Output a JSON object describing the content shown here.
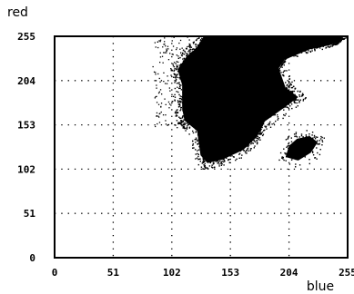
{
  "chart_data": {
    "type": "scatter",
    "title": "",
    "xlabel": "blue",
    "ylabel": "red",
    "xlim": [
      0,
      255
    ],
    "ylim": [
      0,
      255
    ],
    "x_ticks": [
      "0",
      "51",
      "102",
      "153",
      "204",
      "255"
    ],
    "y_ticks": [
      "0",
      "51",
      "102",
      "153",
      "204",
      "255"
    ],
    "grid": true,
    "grid_style": "dotted",
    "point_color": "#000000",
    "series": [
      {
        "clusters": [
          {
            "shape": "main-dense-region",
            "outline": [
              [
                130,
                255
              ],
              [
                250,
                255
              ],
              [
                248,
                249
              ],
              [
                240,
                245
              ],
              [
                222,
                240
              ],
              [
                200,
                228
              ],
              [
                195,
                218
              ],
              [
                201,
                196
              ],
              [
                212,
                185
              ],
              [
                200,
                173
              ],
              [
                183,
                157
              ],
              [
                176,
                139
              ],
              [
                164,
                124
              ],
              [
                146,
                113
              ],
              [
                133,
                109
              ],
              [
                127,
                118
              ],
              [
                124,
                146
              ],
              [
                113,
                158
              ],
              [
                111,
                172
              ],
              [
                111,
                199
              ],
              [
                107,
                217
              ],
              [
                115,
                232
              ],
              [
                123,
                241
              ]
            ]
          },
          {
            "shape": "secondary-small-blob",
            "outline": [
              [
                201,
                116
              ],
              [
                212,
                112
              ],
              [
                223,
                121
              ],
              [
                229,
                133
              ],
              [
                222,
                140
              ],
              [
                211,
                137
              ],
              [
                204,
                129
              ]
            ]
          }
        ]
      }
    ]
  }
}
